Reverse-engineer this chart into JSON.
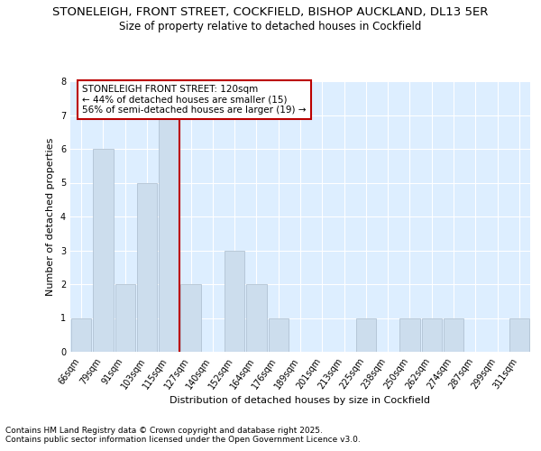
{
  "title_line1": "STONELEIGH, FRONT STREET, COCKFIELD, BISHOP AUCKLAND, DL13 5ER",
  "title_line2": "Size of property relative to detached houses in Cockfield",
  "xlabel": "Distribution of detached houses by size in Cockfield",
  "ylabel": "Number of detached properties",
  "categories": [
    "66sqm",
    "79sqm",
    "91sqm",
    "103sqm",
    "115sqm",
    "127sqm",
    "140sqm",
    "152sqm",
    "164sqm",
    "176sqm",
    "189sqm",
    "201sqm",
    "213sqm",
    "225sqm",
    "238sqm",
    "250sqm",
    "262sqm",
    "274sqm",
    "287sqm",
    "299sqm",
    "311sqm"
  ],
  "values": [
    1,
    6,
    2,
    5,
    7,
    2,
    0,
    3,
    2,
    1,
    0,
    0,
    0,
    1,
    0,
    1,
    1,
    1,
    0,
    0,
    1
  ],
  "bar_color": "#ccdded",
  "bar_edgecolor": "#aabbcc",
  "property_line_x": 4.5,
  "property_line_color": "#bb0000",
  "annotation_text": "STONELEIGH FRONT STREET: 120sqm\n← 44% of detached houses are smaller (15)\n56% of semi-detached houses are larger (19) →",
  "annotation_box_edgecolor": "#bb0000",
  "ylim": [
    0,
    8
  ],
  "yticks": [
    0,
    1,
    2,
    3,
    4,
    5,
    6,
    7,
    8
  ],
  "footer_text": "Contains HM Land Registry data © Crown copyright and database right 2025.\nContains public sector information licensed under the Open Government Licence v3.0.",
  "bg_color": "#ddeeff",
  "grid_color": "#ffffff",
  "title_fontsize": 9.5,
  "subtitle_fontsize": 8.5,
  "axis_label_fontsize": 8,
  "tick_fontsize": 7,
  "footer_fontsize": 6.5,
  "annotation_fontsize": 7.5
}
